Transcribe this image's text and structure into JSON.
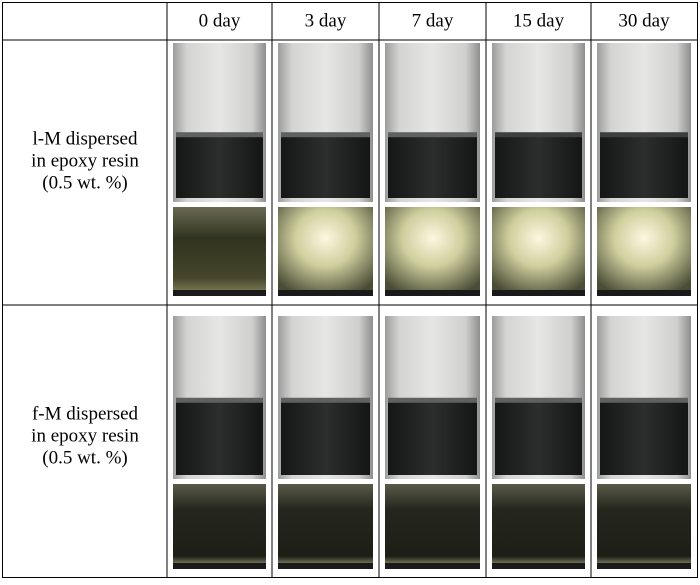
{
  "table": {
    "columns": [
      "0 day",
      "3 day",
      "7 day",
      "15 day",
      "30 day"
    ],
    "rows": [
      {
        "label": [
          "l-M dispersed",
          "in epoxy resin",
          "(0.5 wt. %)"
        ]
      },
      {
        "label": [
          "f-M dispersed",
          "in epoxy resin",
          "(0.5 wt. %)"
        ]
      }
    ]
  }
}
